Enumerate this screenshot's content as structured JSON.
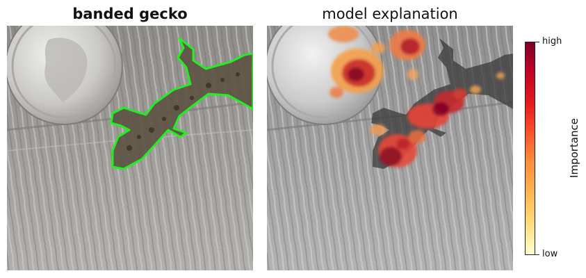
{
  "panels": {
    "left_title": "banded gecko",
    "right_title": "model explanation"
  },
  "colorbar": {
    "label": "Importance",
    "high_label": "high",
    "low_label": "low",
    "colors": [
      "#800026",
      "#bd0026",
      "#e31a1c",
      "#fc4e2a",
      "#fd8d3c",
      "#feb24c",
      "#fed976",
      "#ffffcc"
    ]
  },
  "colors": {
    "outline": "#22ee22",
    "background": "#ffffff"
  }
}
